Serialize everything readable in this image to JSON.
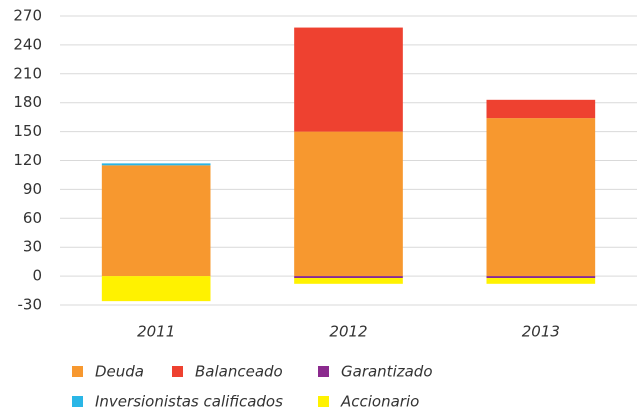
{
  "chart_data": {
    "type": "stacked_bar",
    "categories": [
      "2011",
      "2012",
      "2013"
    ],
    "series": [
      {
        "name": "Deuda",
        "color": "#f7982f",
        "values": [
          115,
          150,
          164
        ]
      },
      {
        "name": "Balanceado",
        "color": "#ee4130",
        "values": [
          0,
          108,
          19
        ]
      },
      {
        "name": "Garantizado",
        "color": "#8b2a8e",
        "values": [
          0,
          -2,
          -2
        ]
      },
      {
        "name": "Inversionistas calificados",
        "color": "#2ab6e6",
        "values": [
          2,
          0,
          0
        ]
      },
      {
        "name": "Accionario",
        "color": "#fff200",
        "values": [
          -26,
          -6,
          -6
        ]
      }
    ],
    "ylim": [
      -30,
      270
    ],
    "yticks": [
      -30,
      0,
      30,
      60,
      90,
      120,
      150,
      180,
      210,
      240,
      270
    ],
    "grid": true
  }
}
